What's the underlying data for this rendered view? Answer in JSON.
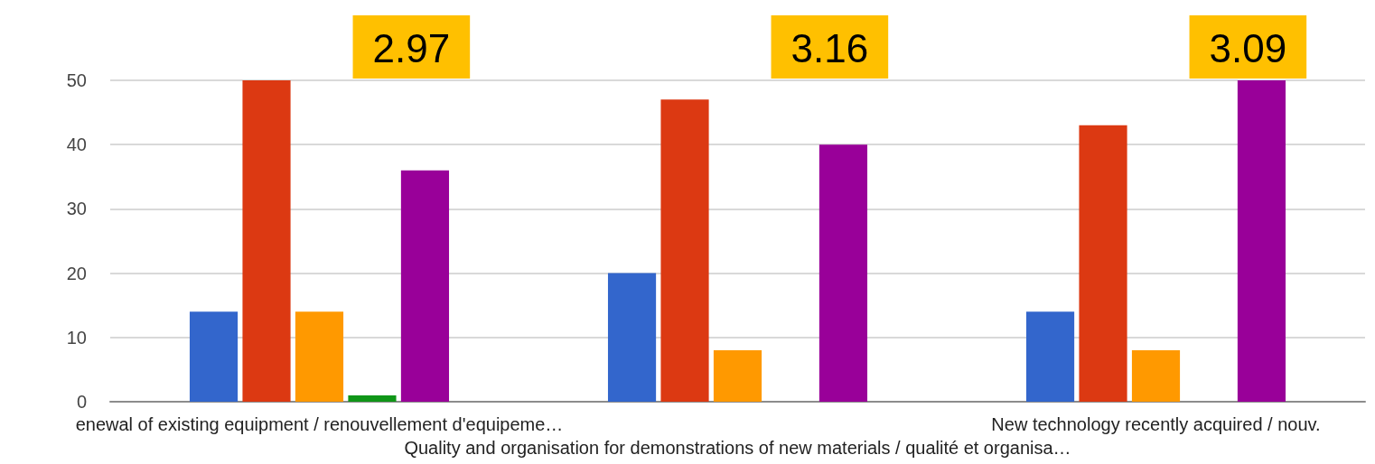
{
  "chart_data": {
    "type": "bar",
    "categories": [
      "enewal of existing equipment / renouvellement d'equipeme…",
      "Quality and organisation for demonstrations of new materials / qualité et organisa…",
      "New technology recently acquired / nouv."
    ],
    "series": [
      {
        "color": "#3366cc",
        "values": [
          14,
          20,
          14
        ]
      },
      {
        "color": "#dc3912",
        "values": [
          50,
          47,
          43
        ]
      },
      {
        "color": "#ff9900",
        "values": [
          14,
          8,
          8
        ]
      },
      {
        "color": "#109618",
        "values": [
          1,
          0,
          0
        ]
      },
      {
        "color": "#990099",
        "values": [
          36,
          40,
          50
        ]
      }
    ],
    "ylim": [
      0,
      50
    ],
    "yticks": [
      0,
      10,
      20,
      30,
      40,
      50
    ],
    "grid": "y",
    "annotations": [
      "2.97",
      "3.16",
      "3.09"
    ]
  }
}
